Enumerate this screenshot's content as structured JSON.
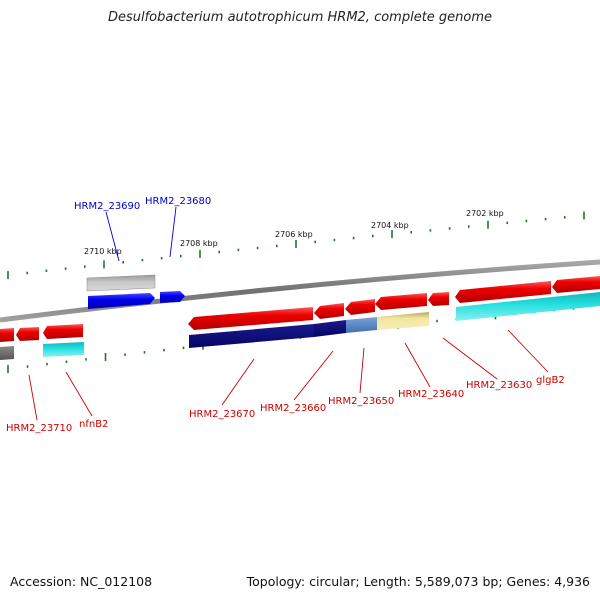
{
  "title": "Desulfobacterium autotrophicum HRM2, complete genome",
  "footer": {
    "accession": "Accession: NC_012108",
    "summary": "Topology: circular; Length: 5,589,073 bp; Genes: 4,936"
  },
  "colors": {
    "backbone": "#808080",
    "tick": "#1a7a1a",
    "label_blue": "#0000cc",
    "label_red": "#cc0000",
    "gene_red": "#ee0000",
    "gene_blue": "#0000ee",
    "gene_grey": "#b8b8b8",
    "gene_darkgrey": "#6a6a6a",
    "gene_navy": "#0a0a78",
    "gene_steel": "#5a86c6",
    "gene_khaki": "#eee08e",
    "gene_cyan": "#22d8d8"
  },
  "ruler_labels": [
    {
      "text": "2710 kbp",
      "pos": 2710
    },
    {
      "text": "2708 kbp",
      "pos": 2708
    },
    {
      "text": "2706 kbp",
      "pos": 2706
    },
    {
      "text": "2704 kbp",
      "pos": 2704
    },
    {
      "text": "2702 kbp",
      "pos": 2702
    }
  ],
  "gene_labels": [
    {
      "text": "HRM2_23690",
      "color": "label_blue"
    },
    {
      "text": "HRM2_23680",
      "color": "label_blue"
    },
    {
      "text": "HRM2_23710",
      "color": "label_red"
    },
    {
      "text": "nfnB2",
      "color": "label_red"
    },
    {
      "text": "HRM2_23670",
      "color": "label_red"
    },
    {
      "text": "HRM2_23660",
      "color": "label_red"
    },
    {
      "text": "HRM2_23650",
      "color": "label_red"
    },
    {
      "text": "HRM2_23640",
      "color": "label_red"
    },
    {
      "text": "HRM2_23630",
      "color": "label_red"
    },
    {
      "text": "glgB2",
      "color": "label_red"
    }
  ]
}
